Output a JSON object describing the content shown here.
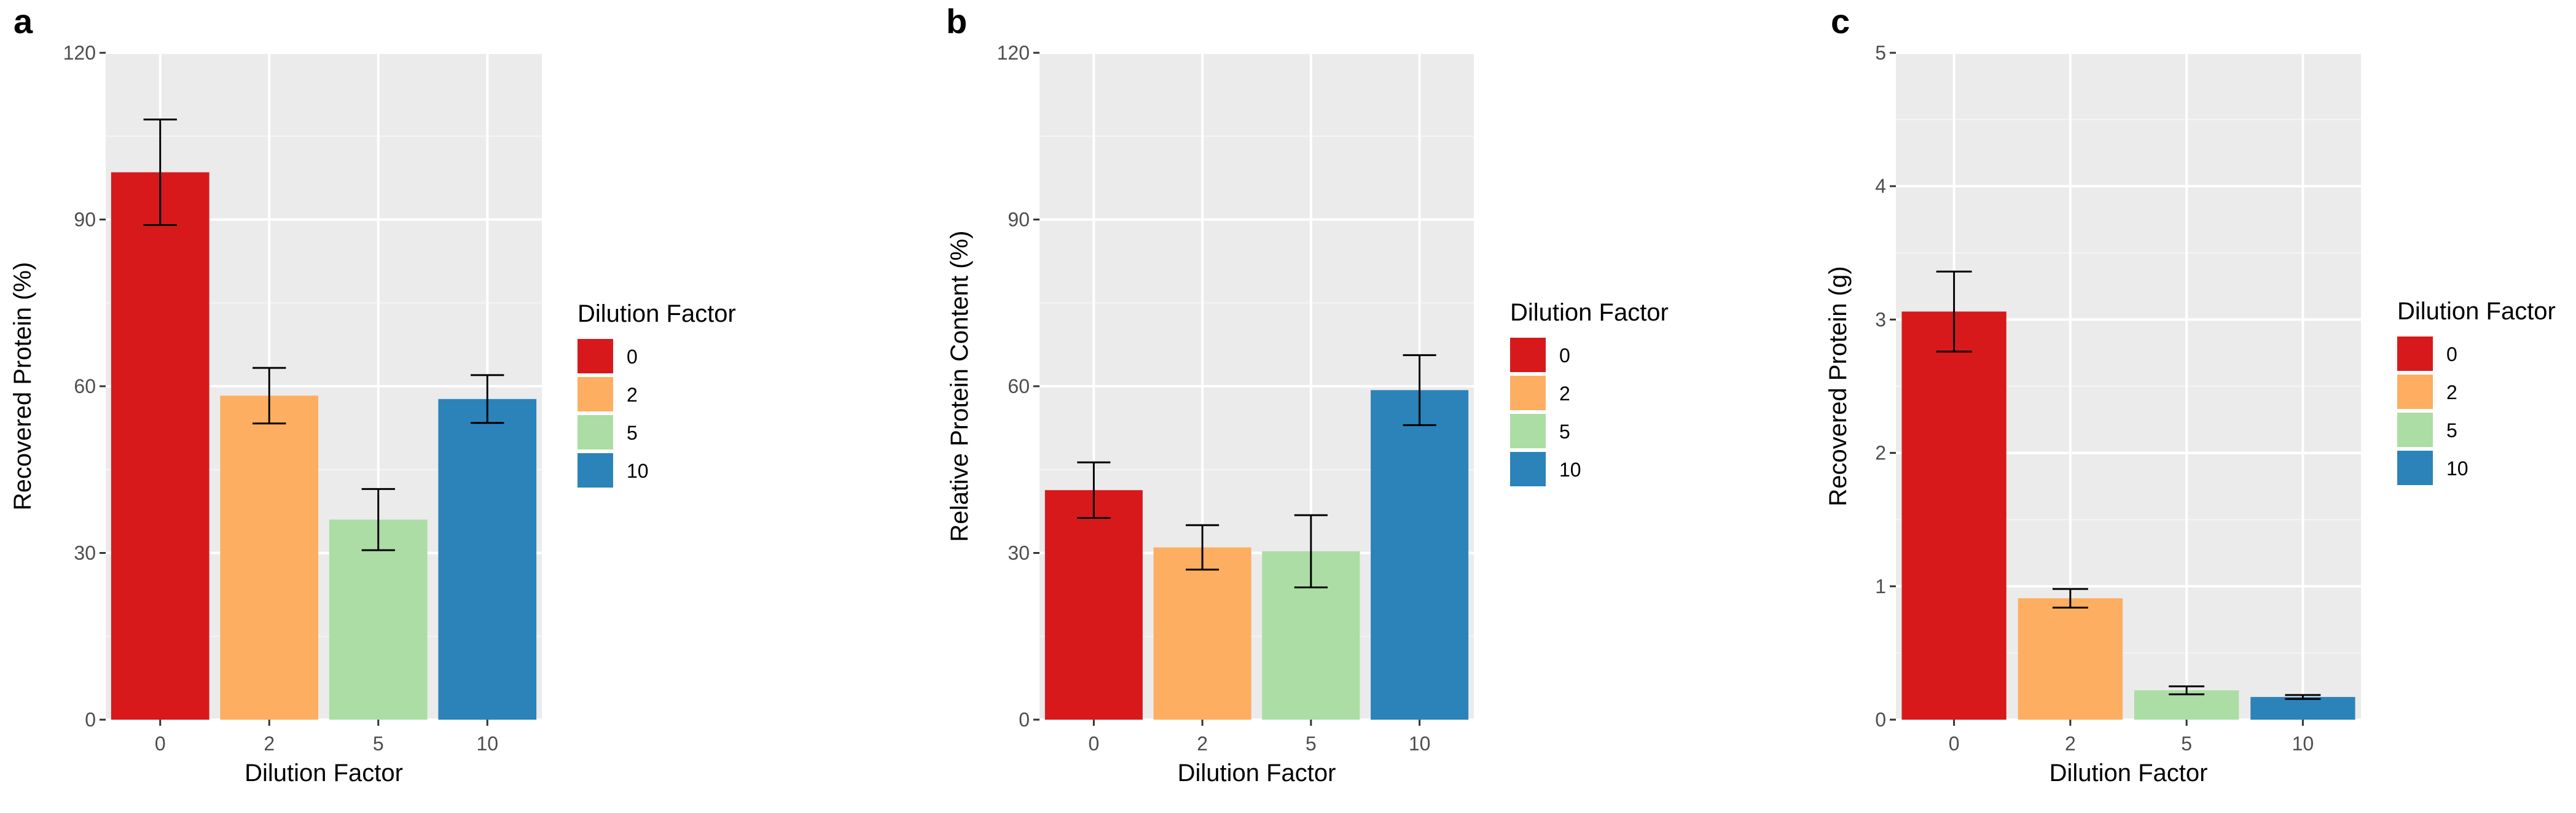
{
  "chart_data": [
    {
      "panel": "a",
      "type": "bar",
      "categories": [
        "0",
        "2",
        "5",
        "10"
      ],
      "values": [
        98.5,
        58.3,
        36.0,
        57.7
      ],
      "errors": [
        9.5,
        5.0,
        5.5,
        4.3
      ],
      "ylabel": "Recovered Protein (%)",
      "xlabel": "Dilution Factor",
      "ylim": [
        0,
        120
      ],
      "yticks": [
        0,
        30,
        60,
        90,
        120
      ],
      "legend": {
        "title": "Dilution Factor",
        "labels": [
          "0",
          "2",
          "5",
          "10"
        ]
      }
    },
    {
      "panel": "b",
      "type": "bar",
      "categories": [
        "0",
        "2",
        "5",
        "10"
      ],
      "values": [
        41.3,
        31.0,
        30.3,
        59.3
      ],
      "errors": [
        5.0,
        4.0,
        6.5,
        6.3
      ],
      "ylabel": "Relative Protein Content (%)",
      "xlabel": "Dilution Factor",
      "ylim": [
        0,
        120
      ],
      "yticks": [
        0,
        30,
        60,
        90,
        120
      ],
      "legend": {
        "title": "Dilution Factor",
        "labels": [
          "0",
          "2",
          "5",
          "10"
        ]
      }
    },
    {
      "panel": "c",
      "type": "bar",
      "categories": [
        "0",
        "2",
        "5",
        "10"
      ],
      "values": [
        3.06,
        0.91,
        0.22,
        0.17
      ],
      "errors": [
        0.3,
        0.07,
        0.03,
        0.015
      ],
      "ylabel": "Recovered Protein (g)",
      "xlabel": "Dilution Factor",
      "ylim": [
        0,
        5
      ],
      "yticks": [
        0,
        1,
        2,
        3,
        4,
        5
      ],
      "legend": {
        "title": "Dilution Factor",
        "labels": [
          "0",
          "2",
          "5",
          "10"
        ]
      }
    }
  ],
  "colors": {
    "0": "#d7191c",
    "2": "#fdae61",
    "5": "#abdda4",
    "10": "#2b83ba"
  }
}
